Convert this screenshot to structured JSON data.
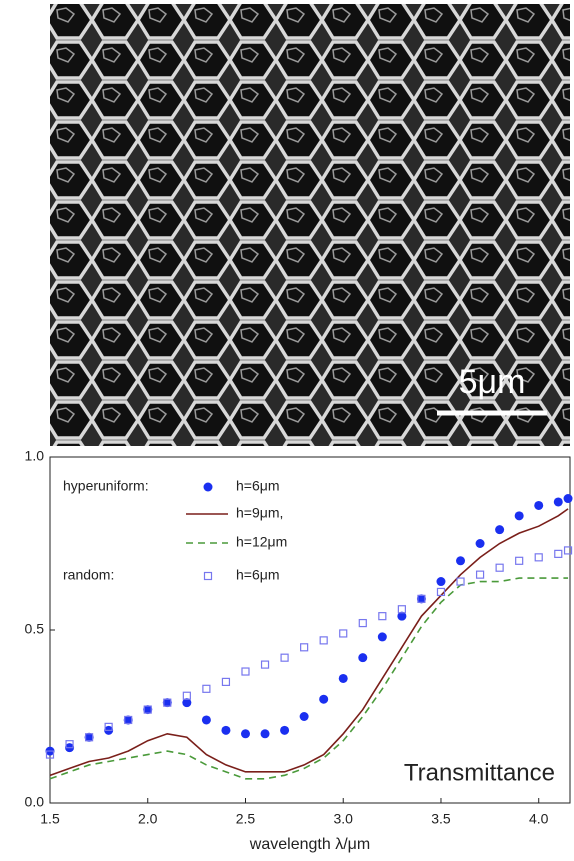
{
  "image": {
    "scale_bar": "5μm"
  },
  "chart_data": {
    "type": "line",
    "xlabel": "wavelength λ/μm",
    "annotation": "Transmittance",
    "x": [
      1.5,
      1.6,
      1.7,
      1.8,
      1.9,
      2.0,
      2.1,
      2.2,
      2.3,
      2.4,
      2.5,
      2.6,
      2.7,
      2.8,
      2.9,
      3.0,
      3.1,
      3.2,
      3.3,
      3.4,
      3.5,
      3.6,
      3.7,
      3.8,
      3.9,
      4.0,
      4.1,
      4.15
    ],
    "series": [
      {
        "group": "hyperuniform:",
        "name": "h=6μm",
        "color": "#1a2ff0",
        "marker": "dot",
        "values": [
          0.15,
          0.16,
          0.19,
          0.21,
          0.24,
          0.27,
          0.29,
          0.29,
          0.24,
          0.21,
          0.2,
          0.2,
          0.21,
          0.25,
          0.3,
          0.36,
          0.42,
          0.48,
          0.54,
          0.59,
          0.64,
          0.7,
          0.75,
          0.79,
          0.83,
          0.86,
          0.87,
          0.88
        ]
      },
      {
        "name": "h=9μm,",
        "color": "#7a1f1a",
        "marker": "line",
        "values": [
          0.08,
          0.1,
          0.12,
          0.13,
          0.15,
          0.18,
          0.2,
          0.19,
          0.14,
          0.11,
          0.09,
          0.09,
          0.09,
          0.11,
          0.14,
          0.2,
          0.27,
          0.36,
          0.45,
          0.54,
          0.6,
          0.66,
          0.71,
          0.75,
          0.78,
          0.8,
          0.83,
          0.85
        ]
      },
      {
        "name": "h=12μm",
        "color": "#4a9a3a",
        "marker": "dashed",
        "values": [
          0.07,
          0.09,
          0.11,
          0.12,
          0.13,
          0.14,
          0.15,
          0.14,
          0.11,
          0.09,
          0.07,
          0.07,
          0.08,
          0.1,
          0.13,
          0.18,
          0.25,
          0.33,
          0.42,
          0.51,
          0.58,
          0.63,
          0.64,
          0.64,
          0.65,
          0.65,
          0.65,
          0.65
        ]
      },
      {
        "group": "random:",
        "name": "h=6μm",
        "color": "#7777ee",
        "marker": "square",
        "values": [
          0.14,
          0.17,
          0.19,
          0.22,
          0.24,
          0.27,
          0.29,
          0.31,
          0.33,
          0.35,
          0.38,
          0.4,
          0.42,
          0.45,
          0.47,
          0.49,
          0.52,
          0.54,
          0.56,
          0.59,
          0.61,
          0.64,
          0.66,
          0.68,
          0.7,
          0.71,
          0.72,
          0.73
        ]
      }
    ],
    "xlim": [
      1.5,
      4.16
    ],
    "ylim": [
      0,
      1
    ],
    "xticks": [
      1.5,
      {
        "value": 2,
        "label": "2.0"
      },
      2.5,
      {
        "value": 3,
        "label": "3.0"
      },
      3.5,
      {
        "value": 4,
        "label": "4.0"
      }
    ],
    "yticks": [
      {
        "value": 0,
        "label": "0.0"
      },
      0.5,
      {
        "value": 1,
        "label": "1.0"
      }
    ],
    "grid": false
  }
}
